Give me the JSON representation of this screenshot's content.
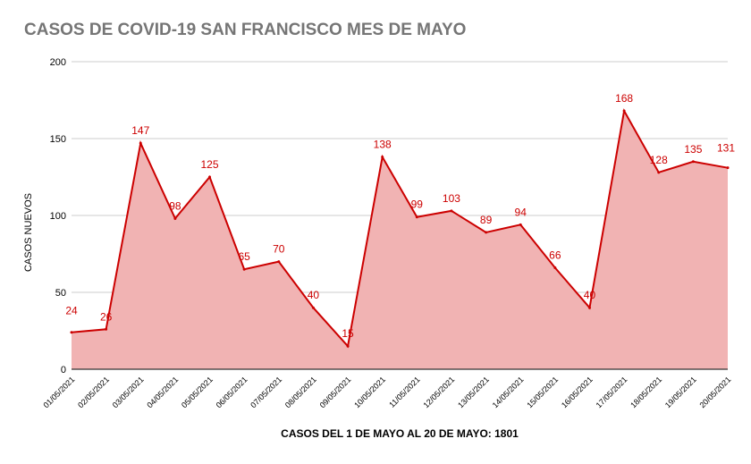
{
  "chart_data": {
    "type": "area",
    "title": "CASOS DE COVID-19 SAN FRANCISCO MES DE MAYO",
    "xlabel": "CASOS DEL 1 DE MAYO AL 20 DE MAYO: 1801",
    "ylabel": "CASOS NUEVOS",
    "ylim": [
      0,
      200
    ],
    "yticks": [
      0,
      50,
      100,
      150,
      200
    ],
    "grid": true,
    "categories": [
      "01/05/2021",
      "02/05/2021",
      "03/05/2021",
      "04/05/2021",
      "05/05/2021",
      "06/05/2021",
      "07/05/2021",
      "08/05/2021",
      "09/05/2021",
      "10/05/2021",
      "11/05/2021",
      "12/05/2021",
      "13/05/2021",
      "14/05/2021",
      "15/05/2021",
      "16/05/2021",
      "17/05/2021",
      "18/05/2021",
      "19/05/2021",
      "20/05/2021"
    ],
    "values": [
      24,
      26,
      147,
      98,
      125,
      65,
      70,
      40,
      15,
      138,
      99,
      103,
      89,
      94,
      66,
      40,
      168,
      128,
      135,
      131
    ],
    "colors": {
      "line": "#cc0000",
      "fill": "#f1b3b3",
      "label": "#cc0000",
      "grid": "#cccccc",
      "title": "#757575"
    }
  }
}
